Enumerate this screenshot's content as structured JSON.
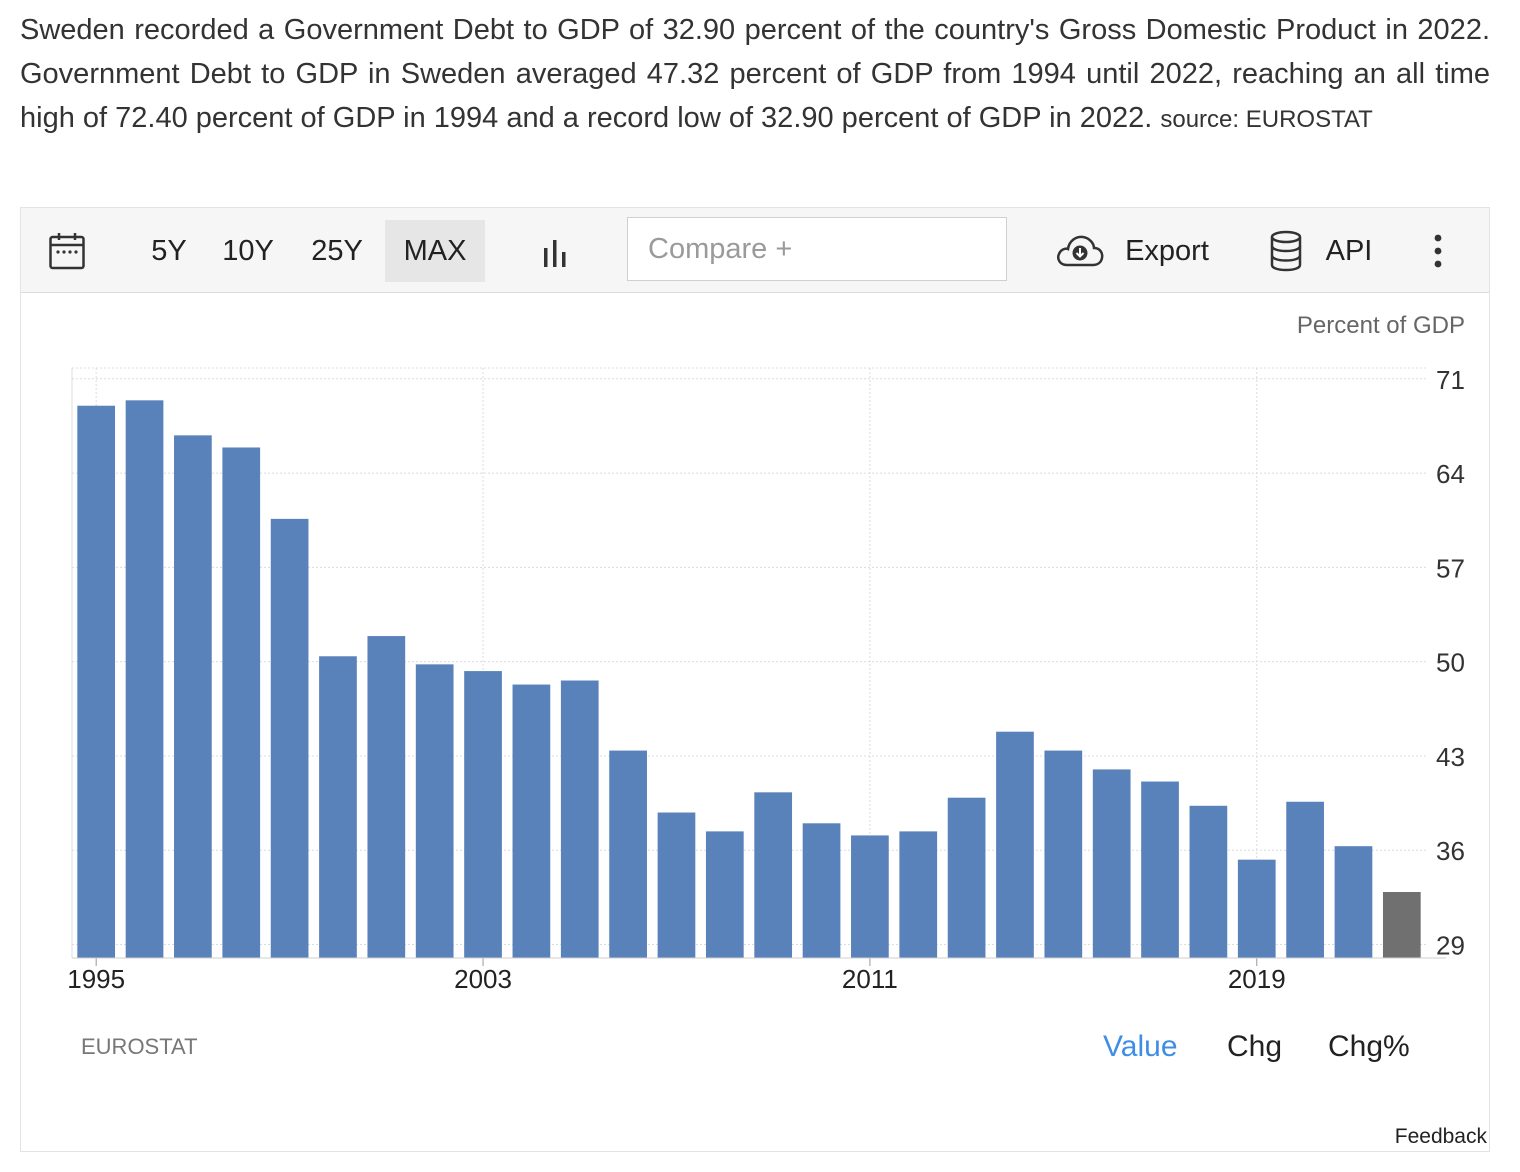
{
  "summary": {
    "text": "Sweden recorded a Government Debt to GDP of 32.90 percent of the country's Gross Domestic Product in 2022. Government Debt to GDP in Sweden averaged 47.32 percent of GDP from 1994 until 2022, reaching an all time high of 72.40 percent of GDP in 1994 and a record low of 32.90 percent of GDP in 2022.",
    "source": "source: EUROSTAT"
  },
  "toolbar": {
    "ranges": [
      "5Y",
      "10Y",
      "25Y",
      "MAX"
    ],
    "active_range": "MAX",
    "compare_placeholder": "Compare +",
    "export_label": "Export",
    "api_label": "API",
    "icons": [
      "calendar-icon",
      "bar-chart-icon",
      "cloud-download-icon",
      "database-icon",
      "more-vertical-icon"
    ]
  },
  "chart_data": {
    "type": "bar",
    "ylabel": "Percent of GDP",
    "x": [
      1995,
      1996,
      1997,
      1998,
      1999,
      2000,
      2001,
      2002,
      2003,
      2004,
      2005,
      2006,
      2007,
      2008,
      2009,
      2010,
      2011,
      2012,
      2013,
      2014,
      2015,
      2016,
      2017,
      2018,
      2019,
      2020,
      2021,
      2022
    ],
    "values": [
      69.0,
      69.4,
      66.8,
      65.9,
      60.6,
      50.4,
      51.9,
      49.8,
      49.3,
      48.3,
      48.6,
      43.4,
      38.8,
      37.4,
      40.3,
      38.0,
      37.1,
      37.4,
      39.9,
      44.8,
      43.4,
      42.0,
      41.1,
      39.3,
      35.3,
      39.6,
      36.3,
      32.9
    ],
    "highlight_last": true,
    "x_ticks": [
      "1995",
      "2003",
      "2011",
      "2019"
    ],
    "y_ticks": [
      29,
      36,
      43,
      50,
      57,
      64,
      71
    ],
    "ylim": [
      28,
      71.8
    ],
    "colors": {
      "bar": "#5a82ba",
      "last_bar": "#707070",
      "grid": "#dcdcdc"
    },
    "grid": true,
    "y_axis_side": "right"
  },
  "footer": {
    "source_tag": "EUROSTAT",
    "modes": [
      "Value",
      "Chg",
      "Chg%"
    ],
    "active_mode": "Value",
    "feedback": "Feedback"
  }
}
